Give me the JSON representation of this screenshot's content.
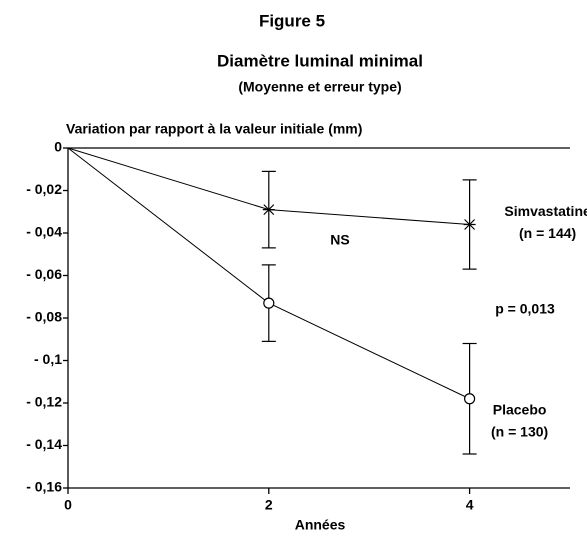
{
  "chart_data": {
    "type": "line",
    "title": "Figure 5",
    "subtitle": "Diamètre luminal minimal",
    "note": "(Moyenne et erreur type)",
    "y_label": "Variation par rapport à la valeur initiale (mm)",
    "x_label": "Années",
    "x": [
      0,
      2,
      4
    ],
    "series": [
      {
        "name": "Simvastatine",
        "n_label": "(n = 144)",
        "color": "#000000",
        "marker": "star",
        "values": [
          0,
          -0.029,
          -0.036
        ],
        "errors": [
          null,
          0.018,
          0.021
        ]
      },
      {
        "name": "Placebo",
        "n_label": "(n = 130)",
        "color": "#000000",
        "marker": "circle",
        "values": [
          0,
          -0.073,
          -0.118
        ],
        "errors": [
          null,
          0.018,
          0.026
        ]
      }
    ],
    "annotations": [
      "NS",
      "p = 0,013"
    ],
    "xlim": [
      0,
      5
    ],
    "xticks": [
      0,
      2,
      4
    ],
    "ylim": [
      -0.16,
      0
    ],
    "yticks": [
      {
        "value": 0,
        "label": "0"
      },
      {
        "value": -0.02,
        "label": "- 0,02"
      },
      {
        "value": -0.04,
        "label": "- 0,04"
      },
      {
        "value": -0.06,
        "label": "- 0,06"
      },
      {
        "value": -0.08,
        "label": "- 0,08"
      },
      {
        "value": -0.1,
        "label": "- 0,1"
      },
      {
        "value": -0.12,
        "label": "- 0,12"
      },
      {
        "value": -0.14,
        "label": "- 0,14"
      },
      {
        "value": -0.16,
        "label": "- 0,16"
      }
    ]
  }
}
